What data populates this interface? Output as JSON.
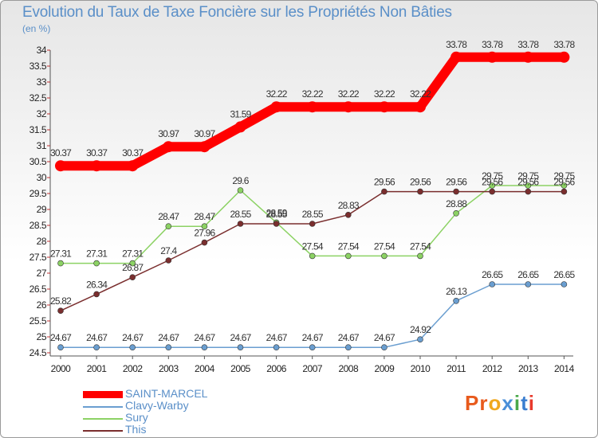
{
  "header": {
    "title": "Evolution du Taux de Taxe Foncière sur les Propriétés Non Bâties",
    "unit": "(en %)"
  },
  "logo": {
    "text": "Proxiti",
    "letters": [
      "P",
      "r",
      "o",
      "x",
      "i",
      "t",
      "i"
    ],
    "colors": [
      "#e85a1c",
      "#e85a1c",
      "#f0a81e",
      "#4a8fd8",
      "#4aa84a",
      "#3a7ed0",
      "#e83a2c"
    ]
  },
  "chart_data": {
    "type": "line",
    "title": "Evolution du Taux de Taxe Foncière sur les Propriétés Non Bâties",
    "ylabel": "(en %)",
    "x": [
      "2000",
      "2001",
      "2002",
      "2003",
      "2004",
      "2005",
      "2006",
      "2007",
      "2008",
      "2009",
      "2010",
      "2011",
      "2012",
      "2013",
      "2014"
    ],
    "ylim": [
      24.5,
      34
    ],
    "yticks": [
      "24.5",
      "25",
      "25.5",
      "26",
      "26.5",
      "27",
      "27.5",
      "28",
      "28.5",
      "29",
      "29.5",
      "30",
      "30.5",
      "31",
      "31.5",
      "32",
      "32.5",
      "33",
      "33.5",
      "34"
    ],
    "series": [
      {
        "name": "SAINT-MARCEL",
        "color": "#ff0000",
        "values": [
          30.37,
          30.37,
          30.37,
          30.97,
          30.97,
          31.59,
          32.22,
          32.22,
          32.22,
          32.22,
          32.22,
          33.78,
          33.78,
          33.78,
          33.78
        ],
        "labels": [
          "30.37",
          "30.37",
          "30.37",
          "30.97",
          "30.97",
          "31.59",
          "32.22",
          "32.22",
          "32.22",
          "32.22",
          "32.22",
          "33.78",
          "33.78",
          "33.78",
          "33.78"
        ]
      },
      {
        "name": "Clavy-Warby",
        "color": "#6a9ed0",
        "values": [
          24.67,
          24.67,
          24.67,
          24.67,
          24.67,
          24.67,
          24.67,
          24.67,
          24.67,
          24.67,
          24.92,
          26.13,
          26.65,
          26.65,
          26.65
        ],
        "labels": [
          "24.67",
          "24.67",
          "24.67",
          "24.67",
          "24.67",
          "24.67",
          "24.67",
          "24.67",
          "24.67",
          "24.67",
          "24.92",
          "26.13",
          "26.65",
          "26.65",
          "26.65"
        ]
      },
      {
        "name": "Sury",
        "color": "#8cd264",
        "values": [
          27.31,
          27.31,
          27.31,
          28.47,
          28.47,
          29.6,
          28.59,
          27.54,
          27.54,
          27.54,
          27.54,
          28.88,
          29.75,
          29.75,
          29.75
        ],
        "labels": [
          "27.31",
          "27.31",
          "27.31",
          "28.47",
          "28.47",
          "29.6",
          "28.59",
          "27.54",
          "27.54",
          "27.54",
          "27.54",
          "28.88",
          "29.75",
          "29.75",
          "29.75"
        ]
      },
      {
        "name": "This",
        "color": "#7a2e2e",
        "values": [
          25.82,
          26.34,
          26.87,
          27.4,
          27.96,
          28.55,
          28.55,
          28.55,
          28.83,
          29.56,
          29.56,
          29.56,
          29.56,
          29.56,
          29.56
        ],
        "labels": [
          "25.82",
          "26.34",
          "26.87",
          "27.4",
          "27.96",
          "28.55",
          "28.55",
          "28.55",
          "28.83",
          "29.56",
          "29.56",
          "29.56",
          "29.56",
          "29.56",
          "29.56"
        ]
      }
    ]
  }
}
